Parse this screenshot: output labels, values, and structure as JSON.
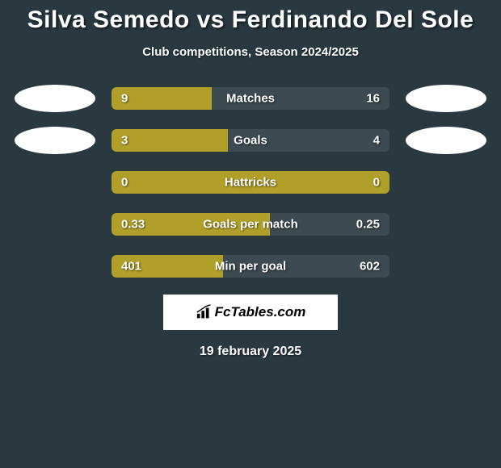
{
  "title": "Silva Semedo vs Ferdinando Del Sole",
  "subtitle": "Club competitions, Season 2024/2025",
  "date": "19 february 2025",
  "logo_text": "FcTables.com",
  "colors": {
    "background": "#2a3840",
    "bar_fill": "#b0a029",
    "bar_empty": "#3d4a51",
    "text": "#ffffff",
    "logo_bg": "#ffffff",
    "logo_text": "#000000"
  },
  "rows": [
    {
      "label": "Matches",
      "left": "9",
      "right": "16",
      "fill_pct": 36,
      "show_avatars": true
    },
    {
      "label": "Goals",
      "left": "3",
      "right": "4",
      "fill_pct": 42,
      "show_avatars": true
    },
    {
      "label": "Hattricks",
      "left": "0",
      "right": "0",
      "fill_pct": 100,
      "show_avatars": false
    },
    {
      "label": "Goals per match",
      "left": "0.33",
      "right": "0.25",
      "fill_pct": 57,
      "show_avatars": false
    },
    {
      "label": "Min per goal",
      "left": "401",
      "right": "602",
      "fill_pct": 40,
      "show_avatars": false
    }
  ]
}
